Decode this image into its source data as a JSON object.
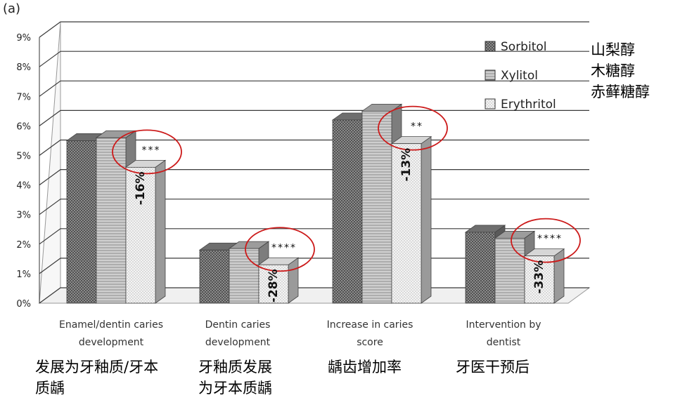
{
  "panel_label": "(a)",
  "legend_cn": [
    "山梨醇",
    "木糖醇",
    "赤藓糖醇"
  ],
  "category_cn": [
    "发展为牙釉质/牙本质龋",
    "牙釉质发展为牙本质龋",
    "龋齿增加率",
    "牙医干预后"
  ],
  "chart_data": {
    "type": "bar",
    "title": "",
    "xlabel": "",
    "ylabel": "",
    "ylim": [
      0,
      9
    ],
    "ytick_labels": [
      "0%",
      "1%",
      "2%",
      "3%",
      "4%",
      "5%",
      "6%",
      "7%",
      "8%",
      "9%"
    ],
    "grid": true,
    "legend_position": "top-right",
    "categories": [
      "Enamel/dentin caries development",
      "Dentin caries development",
      "Increase in caries score",
      "Intervention by dentist"
    ],
    "series": [
      {
        "name": "Sorbitol",
        "values": [
          5.5,
          1.8,
          6.2,
          2.4
        ],
        "color": "#8a8a8a"
      },
      {
        "name": "Xylitol",
        "values": [
          5.6,
          1.85,
          6.5,
          2.2
        ],
        "color": "#c4c4c4"
      },
      {
        "name": "Erythritol",
        "values": [
          4.6,
          1.3,
          5.4,
          1.6
        ],
        "color": "#efefef"
      }
    ],
    "annotations": [
      {
        "category": 0,
        "stars": "***",
        "change": "-16%"
      },
      {
        "category": 1,
        "stars": "****",
        "change": "-28%"
      },
      {
        "category": 2,
        "stars": "**",
        "change": "-13%"
      },
      {
        "category": 3,
        "stars": "****",
        "change": "-33%"
      }
    ],
    "highlight_color": "#cc1a1a"
  }
}
